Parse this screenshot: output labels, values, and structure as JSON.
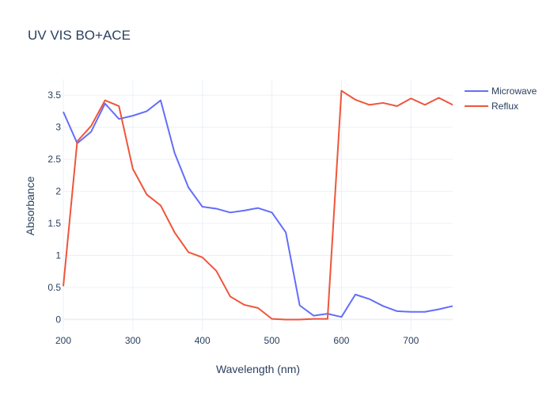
{
  "chart_data": {
    "type": "line",
    "title": "UV VIS BO+ACE",
    "xlabel": "Wavelength (nm)",
    "ylabel": "Absorbance",
    "xlim": [
      200,
      760
    ],
    "ylim": [
      -0.18,
      3.75
    ],
    "xticks": [
      200,
      300,
      400,
      500,
      600,
      700
    ],
    "xtick_labels": [
      "200",
      "300",
      "400",
      "500",
      "600",
      "700"
    ],
    "yticks": [
      0,
      0.5,
      1,
      1.5,
      2,
      2.5,
      3,
      3.5
    ],
    "ytick_labels": [
      "0",
      "0.5",
      "1",
      "1.5",
      "2",
      "2.5",
      "3",
      "3.5"
    ],
    "grid": true,
    "legend_position": "top-right",
    "series": [
      {
        "name": "Microwave",
        "color": "#636efa",
        "x": [
          200,
          220,
          240,
          260,
          280,
          300,
          320,
          340,
          360,
          380,
          400,
          420,
          440,
          460,
          480,
          500,
          520,
          540,
          560,
          580,
          600,
          620,
          640,
          660,
          680,
          700,
          720,
          740,
          760
        ],
        "y": [
          3.24,
          2.75,
          2.93,
          3.37,
          3.13,
          3.18,
          3.25,
          3.42,
          2.6,
          2.06,
          1.76,
          1.73,
          1.67,
          1.7,
          1.74,
          1.67,
          1.36,
          0.22,
          0.06,
          0.09,
          0.04,
          0.39,
          0.32,
          0.21,
          0.13,
          0.12,
          0.12,
          0.16,
          0.21
        ]
      },
      {
        "name": "Reflux",
        "color": "#ef553b",
        "x": [
          200,
          220,
          240,
          260,
          280,
          300,
          320,
          340,
          360,
          380,
          400,
          420,
          440,
          460,
          480,
          500,
          520,
          540,
          560,
          580,
          600,
          620,
          640,
          660,
          680,
          700,
          720,
          740,
          760
        ],
        "y": [
          0.52,
          2.78,
          3.02,
          3.42,
          3.33,
          2.35,
          1.95,
          1.78,
          1.36,
          1.05,
          0.97,
          0.76,
          0.36,
          0.23,
          0.18,
          0.01,
          0.0,
          0.0,
          0.01,
          0.01,
          3.57,
          3.43,
          3.35,
          3.38,
          3.33,
          3.45,
          3.35,
          3.46,
          3.35
        ]
      }
    ]
  }
}
